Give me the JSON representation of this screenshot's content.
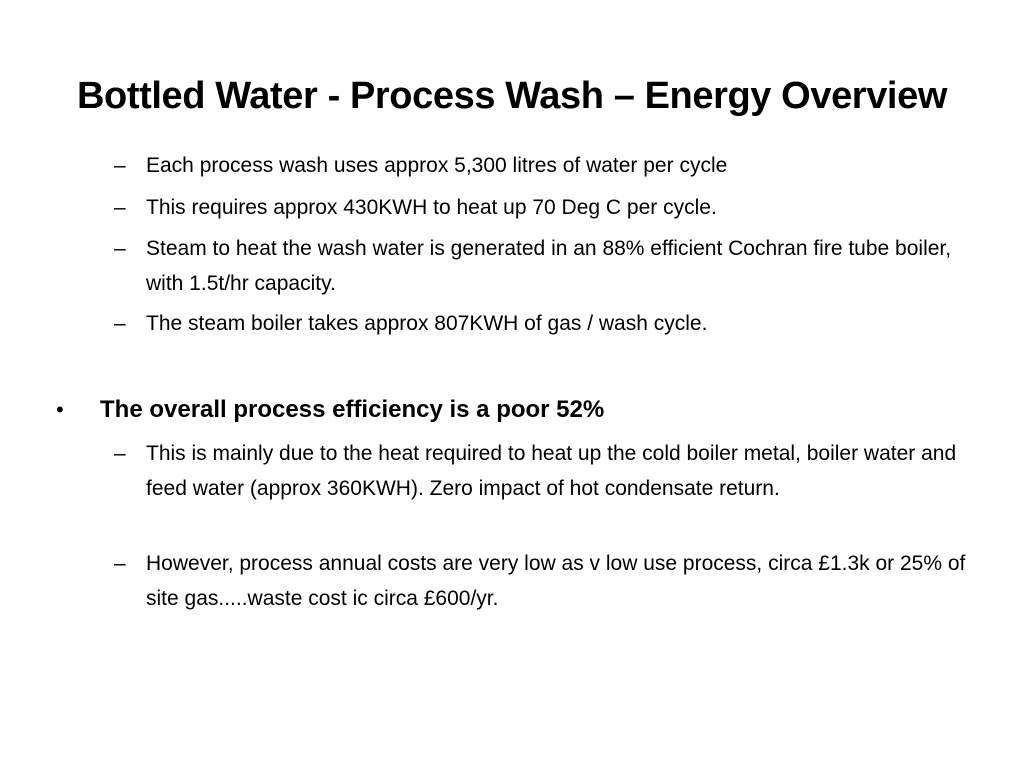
{
  "slide": {
    "title": "Bottled Water - Process Wash – Energy Overview",
    "sub_marker": "–",
    "bullet_marker": "•",
    "group1": [
      "Each process wash uses approx 5,300 litres of water per cycle",
      "This requires approx 430KWH to heat up 70 Deg C per cycle.",
      "Steam to heat the wash water is generated in an 88% efficient Cochran fire tube boiler, with 1.5t/hr capacity.",
      "The steam boiler takes approx 807KWH of gas / wash cycle."
    ],
    "main_bullet": "The overall process efficiency is a poor 52%",
    "group2": [
      "This is mainly due to the heat required to heat up the cold boiler metal, boiler water and feed water (approx 360KWH).  Zero impact of hot condensate return.",
      "However, process annual costs are very low as v low use process, circa £1.3k or 25% of site gas.....waste cost ic circa £600/yr."
    ]
  }
}
